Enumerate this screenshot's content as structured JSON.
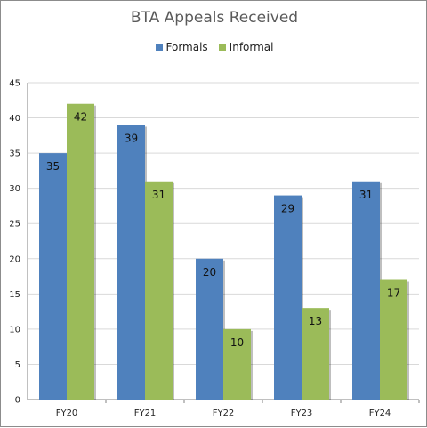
{
  "chart_data": {
    "type": "bar",
    "title": "BTA Appeals Received",
    "categories": [
      "FY20",
      "FY21",
      "FY22",
      "FY23",
      "FY24"
    ],
    "series": [
      {
        "name": "Formals",
        "color": "#4f81bd",
        "values": [
          35,
          39,
          20,
          29,
          31
        ]
      },
      {
        "name": "Informal",
        "color": "#9bbb59",
        "values": [
          42,
          31,
          10,
          13,
          17
        ]
      }
    ],
    "ylim": [
      0,
      45
    ],
    "yticks": [
      "0",
      "5",
      "10",
      "15",
      "20",
      "25",
      "30",
      "35",
      "40",
      "45"
    ],
    "grid": true,
    "legend_position": "top"
  }
}
